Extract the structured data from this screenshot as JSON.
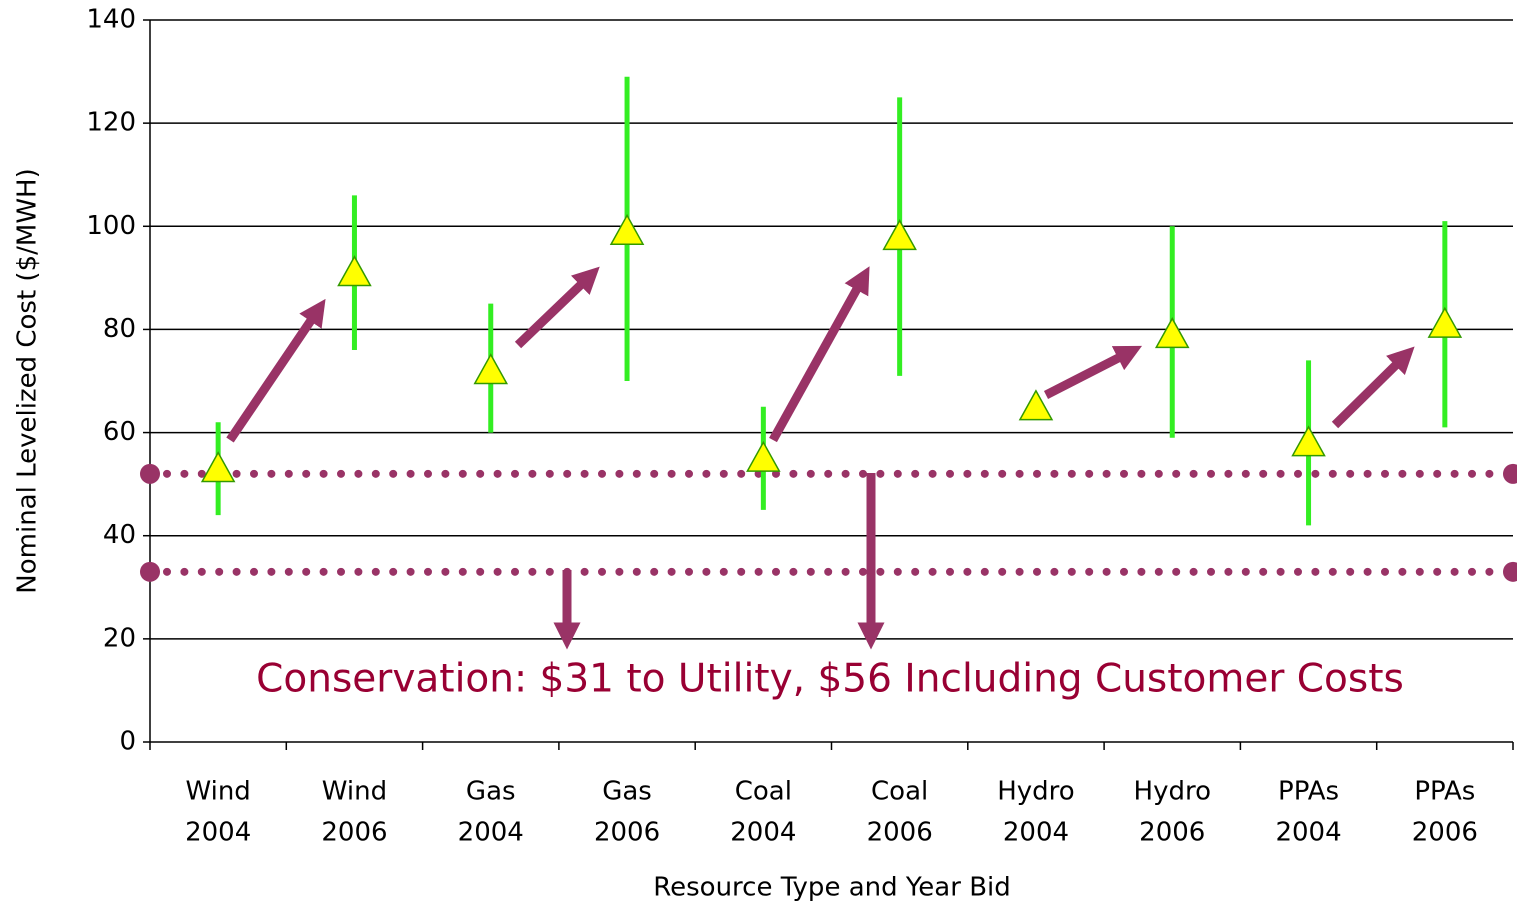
{
  "chart_data": {
    "type": "range",
    "y_axis_label": "Nominal Levelized Cost  ($/MWH)",
    "x_axis_label": "Resource Type and Year Bid",
    "annotation": "Conservation: $31 to Utility, $56 Including Customer Costs",
    "categories": [
      [
        "Wind",
        "2004"
      ],
      [
        "Wind",
        "2006"
      ],
      [
        "Gas",
        "2004"
      ],
      [
        "Gas",
        "2006"
      ],
      [
        "Coal",
        "2004"
      ],
      [
        "Coal",
        "2006"
      ],
      [
        "Hydro",
        "2004"
      ],
      [
        "Hydro",
        "2006"
      ],
      [
        "PPAs",
        "2004"
      ],
      [
        "PPAs",
        "2006"
      ]
    ],
    "values": [
      53,
      91,
      72,
      99,
      55,
      98,
      65,
      79,
      58,
      81
    ],
    "low": [
      44,
      76,
      60,
      70,
      45,
      71,
      null,
      59,
      42,
      61
    ],
    "high": [
      62,
      106,
      85,
      129,
      65,
      125,
      null,
      100,
      74,
      101
    ],
    "marker_color": "#ffff00",
    "marker_edge_color": "#339900",
    "range_color": "#33ee22",
    "reference_lines": [
      52,
      33
    ],
    "reference_color": "#993366",
    "ylim": [
      0,
      140
    ],
    "yticks": [
      0,
      20,
      40,
      60,
      80,
      100,
      120,
      140
    ],
    "grid": true
  }
}
